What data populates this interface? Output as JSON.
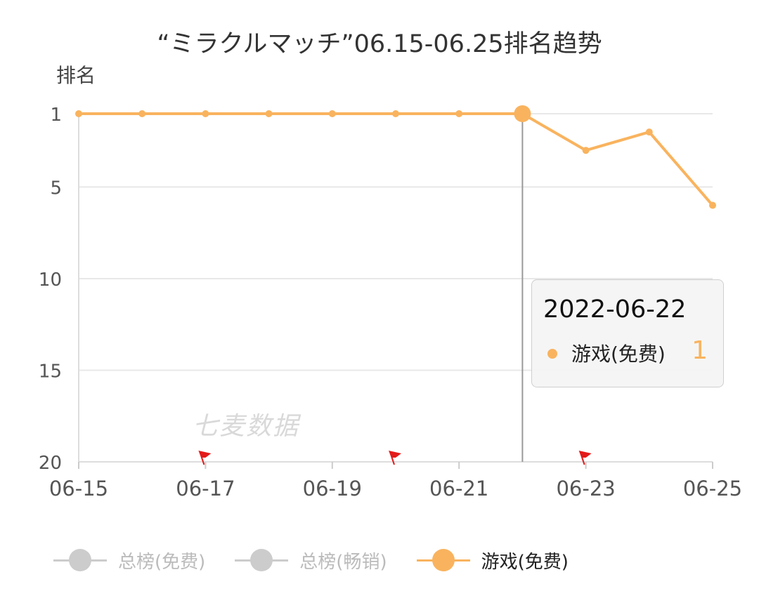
{
  "title": "“ミラクルマッチ”06.15-06.25排名趋势",
  "y_axis_label": "排名",
  "watermark": "七麦数据",
  "colors": {
    "series": "#f9b35e",
    "grid": "#e8e8e8",
    "axis": "#dddddd",
    "tick_text": "#555555",
    "legend_inactive": "#cccccc",
    "crosshair": "#999999",
    "flag": "#e41a1a"
  },
  "chart_data": {
    "type": "line",
    "title": "“ミラクルマッチ”06.15-06.25排名趋势",
    "xlabel": "",
    "ylabel": "排名",
    "x": [
      "06-15",
      "06-16",
      "06-17",
      "06-18",
      "06-19",
      "06-20",
      "06-21",
      "06-22",
      "06-23",
      "06-24",
      "06-25"
    ],
    "x_tick_labels": [
      "06-15",
      "06-17",
      "06-19",
      "06-21",
      "06-23",
      "06-25"
    ],
    "y_ticks": [
      1,
      5,
      10,
      15,
      20
    ],
    "ylim": [
      1,
      20
    ],
    "y_inverted": true,
    "grid": true,
    "series": [
      {
        "name": "游戏(免费)",
        "values": [
          1,
          1,
          1,
          1,
          1,
          1,
          1,
          1,
          3,
          2,
          6
        ]
      }
    ],
    "highlight_index": 7,
    "flag_dates": [
      "06-17",
      "06-20",
      "06-23"
    ],
    "legend_position": "bottom-left"
  },
  "tooltip": {
    "date": "2022-06-22",
    "series_name": "游戏(免费)",
    "value": "1"
  },
  "legend": [
    {
      "label": "总榜(免费)",
      "active": false
    },
    {
      "label": "总榜(畅销)",
      "active": false
    },
    {
      "label": "游戏(免费)",
      "active": true
    }
  ]
}
